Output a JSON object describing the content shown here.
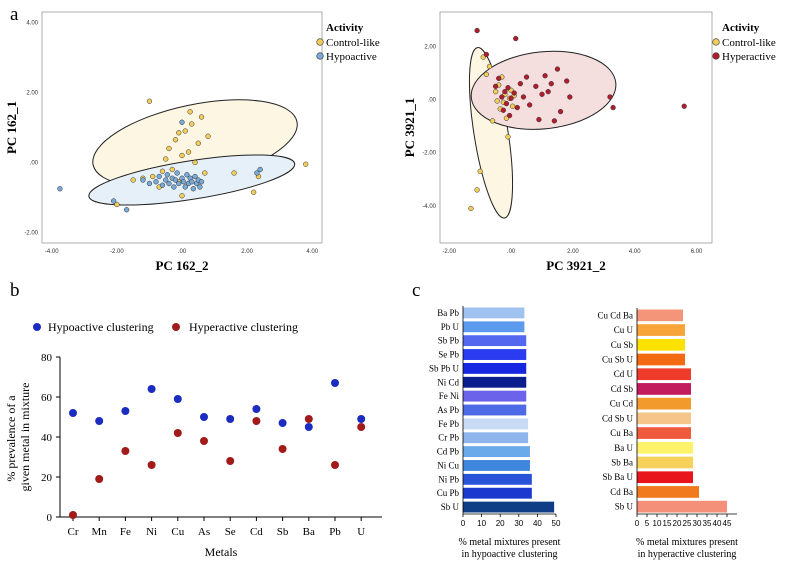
{
  "panels": {
    "a": "a",
    "b": "b",
    "c": "c"
  },
  "chart_data": [
    {
      "id": "a-left",
      "type": "scatter",
      "xlabel": "PC 162_2",
      "ylabel": "PC 162_1",
      "xlim": [
        -4.3,
        4.3
      ],
      "ylim": [
        -2.3,
        4.3
      ],
      "xticks": [
        "-4.00",
        "-2.00",
        ".00",
        "2.00",
        "4.00"
      ],
      "xtick_values": [
        -4,
        -2,
        0,
        2,
        4
      ],
      "yticks": [
        "-2.00",
        ".00",
        "2.00",
        "4.00"
      ],
      "ytick_values": [
        -2,
        0,
        2,
        4
      ],
      "legend": {
        "title": "Activity",
        "entries": [
          "Control-like",
          "Hypoactive"
        ]
      },
      "colors": {
        "Control-like": "#f2cd5c",
        "Hypoactive": "#79a9d6"
      },
      "ellipse_fills": {
        "Control-like": "#fdf6e3",
        "Hypoactive": "#e6f0f8"
      },
      "ellipses": [
        {
          "group": "Control-like",
          "cx": 0.4,
          "cy": 0.55,
          "rx": 3.2,
          "ry": 1.1,
          "angle": 12
        },
        {
          "group": "Hypoactive",
          "cx": 0.3,
          "cy": -0.5,
          "rx": 3.2,
          "ry": 0.55,
          "angle": 9
        }
      ],
      "series": [
        {
          "name": "Control-like",
          "points": [
            [
              -2.0,
              -1.2
            ],
            [
              -1.5,
              -0.5
            ],
            [
              -1.2,
              -0.45
            ],
            [
              -1.0,
              1.75
            ],
            [
              -0.9,
              -0.4
            ],
            [
              -0.7,
              -0.7
            ],
            [
              -0.6,
              -0.25
            ],
            [
              -0.5,
              0.1
            ],
            [
              -0.4,
              0.4
            ],
            [
              -0.3,
              -0.2
            ],
            [
              -0.2,
              0.65
            ],
            [
              -0.1,
              -0.55
            ],
            [
              -0.1,
              0.85
            ],
            [
              0.0,
              0.2
            ],
            [
              0.0,
              -0.95
            ],
            [
              0.1,
              0.9
            ],
            [
              0.2,
              0.3
            ],
            [
              0.25,
              1.45
            ],
            [
              0.3,
              1.1
            ],
            [
              0.4,
              0.0
            ],
            [
              0.5,
              0.55
            ],
            [
              0.6,
              1.3
            ],
            [
              0.7,
              -0.3
            ],
            [
              0.8,
              0.75
            ],
            [
              1.6,
              -0.3
            ],
            [
              2.2,
              -0.85
            ],
            [
              2.35,
              -0.4
            ],
            [
              3.8,
              -0.05
            ]
          ]
        },
        {
          "name": "Hypoactive",
          "points": [
            [
              -3.75,
              -0.75
            ],
            [
              -2.1,
              -1.1
            ],
            [
              -1.7,
              -1.35
            ],
            [
              -1.2,
              -0.5
            ],
            [
              -1.0,
              -0.6
            ],
            [
              -0.8,
              -0.55
            ],
            [
              -0.7,
              -0.4
            ],
            [
              -0.6,
              -0.65
            ],
            [
              -0.5,
              -0.5
            ],
            [
              -0.45,
              -0.35
            ],
            [
              -0.4,
              -0.6
            ],
            [
              -0.3,
              -0.45
            ],
            [
              -0.25,
              -0.7
            ],
            [
              -0.2,
              -0.5
            ],
            [
              -0.15,
              -0.3
            ],
            [
              -0.1,
              -0.6
            ],
            [
              0.0,
              1.15
            ],
            [
              0.0,
              -0.45
            ],
            [
              0.05,
              -0.55
            ],
            [
              0.1,
              -0.7
            ],
            [
              0.15,
              -0.35
            ],
            [
              0.2,
              -0.6
            ],
            [
              0.25,
              -0.45
            ],
            [
              0.3,
              -0.55
            ],
            [
              0.35,
              -0.75
            ],
            [
              0.4,
              -0.4
            ],
            [
              0.45,
              -0.6
            ],
            [
              0.5,
              -0.5
            ],
            [
              0.55,
              -0.7
            ],
            [
              0.6,
              -0.55
            ],
            [
              2.3,
              -0.3
            ],
            [
              2.4,
              -0.2
            ]
          ]
        }
      ]
    },
    {
      "id": "a-right",
      "type": "scatter",
      "xlabel": "PC 3921_2",
      "ylabel": "PC 3921_1",
      "xlim": [
        -2.3,
        6.5
      ],
      "ylim": [
        -5.4,
        3.3
      ],
      "xticks": [
        "-2.00",
        ".00",
        "2.00",
        "4.00",
        "6.00"
      ],
      "xtick_values": [
        -2,
        0,
        2,
        4,
        6
      ],
      "yticks": [
        "-4.00",
        "-2.00",
        ".00",
        "2.00"
      ],
      "ytick_values": [
        -4,
        -2,
        0,
        2
      ],
      "legend": {
        "title": "Activity",
        "entries": [
          "Control-like",
          "Hyperactive"
        ]
      },
      "colors": {
        "Control-like": "#f2cd5c",
        "Hyperactive": "#b01e2e"
      },
      "ellipse_fills": {
        "Control-like": "#fdf6e3",
        "Hyperactive": "#f4dede"
      },
      "ellipses": [
        {
          "group": "Control-like",
          "cx": -0.65,
          "cy": -1.25,
          "rx": 0.55,
          "ry": 3.25,
          "angle": 9
        },
        {
          "group": "Hyperactive",
          "cx": 1.05,
          "cy": 0.35,
          "rx": 2.35,
          "ry": 1.45,
          "angle": 6
        }
      ],
      "series": [
        {
          "name": "Control-like",
          "points": [
            [
              -1.3,
              -4.1
            ],
            [
              -1.1,
              -3.4
            ],
            [
              -1.0,
              -2.7
            ],
            [
              -0.9,
              1.6
            ],
            [
              -0.8,
              0.95
            ],
            [
              -0.7,
              1.25
            ],
            [
              -0.6,
              -0.8
            ],
            [
              -0.5,
              0.3
            ],
            [
              -0.45,
              -0.05
            ],
            [
              -0.4,
              0.55
            ],
            [
              -0.35,
              -0.35
            ],
            [
              -0.3,
              0.85
            ],
            [
              -0.25,
              -0.1
            ],
            [
              -0.2,
              0.2
            ],
            [
              -0.15,
              -0.7
            ],
            [
              -0.1,
              -1.4
            ],
            [
              -0.05,
              0.05
            ],
            [
              0.0,
              0.35
            ],
            [
              0.05,
              -0.25
            ],
            [
              0.1,
              0.15
            ]
          ]
        },
        {
          "name": "Hyperactive",
          "points": [
            [
              -1.1,
              2.6
            ],
            [
              -0.8,
              1.7
            ],
            [
              -0.5,
              0.5
            ],
            [
              -0.4,
              0.8
            ],
            [
              -0.3,
              0.1
            ],
            [
              -0.25,
              -0.4
            ],
            [
              -0.2,
              0.3
            ],
            [
              -0.15,
              -0.15
            ],
            [
              -0.1,
              0.45
            ],
            [
              -0.05,
              -0.6
            ],
            [
              0.0,
              0.05
            ],
            [
              0.1,
              0.25
            ],
            [
              0.15,
              2.3
            ],
            [
              0.2,
              -0.3
            ],
            [
              0.3,
              0.6
            ],
            [
              0.4,
              0.1
            ],
            [
              0.5,
              0.85
            ],
            [
              0.6,
              -0.2
            ],
            [
              0.8,
              0.5
            ],
            [
              0.9,
              -0.75
            ],
            [
              1.0,
              0.2
            ],
            [
              1.1,
              0.9
            ],
            [
              1.2,
              0.3
            ],
            [
              1.3,
              0.6
            ],
            [
              1.4,
              -0.8
            ],
            [
              1.5,
              1.15
            ],
            [
              1.6,
              -0.45
            ],
            [
              1.8,
              0.7
            ],
            [
              1.9,
              0.1
            ],
            [
              3.2,
              0.1
            ],
            [
              3.3,
              -0.3
            ],
            [
              5.6,
              -0.25
            ]
          ]
        }
      ]
    },
    {
      "id": "b",
      "type": "scatter",
      "xlabel": "Metals",
      "ylabel": "% prevalence of a given metal in mixture",
      "categories": [
        "Cr",
        "Mn",
        "Fe",
        "Ni",
        "Cu",
        "As",
        "Se",
        "Cd",
        "Sb",
        "Ba",
        "Pb",
        "U"
      ],
      "ylim": [
        0,
        80
      ],
      "yticks": [
        0,
        20,
        40,
        60,
        80
      ],
      "legend": [
        "Hypoactive clustering",
        "Hyperactive clustering"
      ],
      "colors": {
        "Hypoactive clustering": "#1b2cc1",
        "Hyperactive clustering": "#a11b1b"
      },
      "series": [
        {
          "name": "Hypoactive clustering",
          "values": [
            52,
            48,
            53,
            64,
            59,
            50,
            49,
            54,
            47,
            45,
            67,
            49
          ]
        },
        {
          "name": "Hyperactive clustering",
          "values": [
            1,
            19,
            33,
            26,
            42,
            38,
            28,
            48,
            34,
            49,
            26,
            45
          ]
        }
      ]
    },
    {
      "id": "c-left",
      "type": "bar",
      "orientation": "horizontal",
      "xlabel": [
        "% metal mixtures present",
        "in hypoactive clustering"
      ],
      "xlim": [
        0,
        50
      ],
      "xticks": [
        0,
        10,
        20,
        30,
        40,
        50
      ],
      "categories": [
        "Ba Pb",
        "Pb U",
        "Sb Pb",
        "Se Pb",
        "Sb Pb U",
        "Ni Cd",
        "Fe Ni",
        "As Pb",
        "Fe Pb",
        "Cr Pb",
        "Cd Pb",
        "Ni Cu",
        "Ni Pb",
        "Cu Pb",
        "Sb U"
      ],
      "values": [
        33,
        33,
        34,
        34,
        34,
        34,
        34,
        34,
        35,
        35,
        36,
        36,
        37,
        37,
        49
      ],
      "colors": [
        "#9fc3ee",
        "#5c9aee",
        "#5368ee",
        "#2a3bf0",
        "#1527e0",
        "#0c1e8e",
        "#6b63e9",
        "#4f6ae6",
        "#c7dbf4",
        "#8fb4ec",
        "#6aa9ea",
        "#3f86de",
        "#2653d8",
        "#1c39cf",
        "#0f3d86"
      ]
    },
    {
      "id": "c-right",
      "type": "bar",
      "orientation": "horizontal",
      "xlabel": [
        "% metal mixtures present",
        "in hyperactive clustering"
      ],
      "xlim": [
        0,
        50
      ],
      "xticks": [
        0,
        5,
        10,
        15,
        20,
        25,
        30,
        35,
        40,
        45
      ],
      "categories": [
        "Cu Cd Ba",
        "Cu U",
        "Cu Sb",
        "Cu Sb U",
        "Cd U",
        "Cd Sb",
        "Cu Cd",
        "Cd Sb U",
        "Cu Ba",
        "Ba U",
        "Sb Ba",
        "Sb Ba U",
        "Cd Ba",
        "Sb U"
      ],
      "values": [
        23,
        24,
        24,
        24,
        27,
        27,
        27,
        27,
        27,
        28,
        28,
        28,
        31,
        45
      ],
      "colors": [
        "#f4957a",
        "#f7a53a",
        "#fde200",
        "#f26a12",
        "#ee3b2b",
        "#c21c5e",
        "#f39a2c",
        "#f6c58a",
        "#f05a3c",
        "#fdf36a",
        "#f6d25a",
        "#e8161c",
        "#f07a1d",
        "#f48f7a"
      ]
    }
  ]
}
